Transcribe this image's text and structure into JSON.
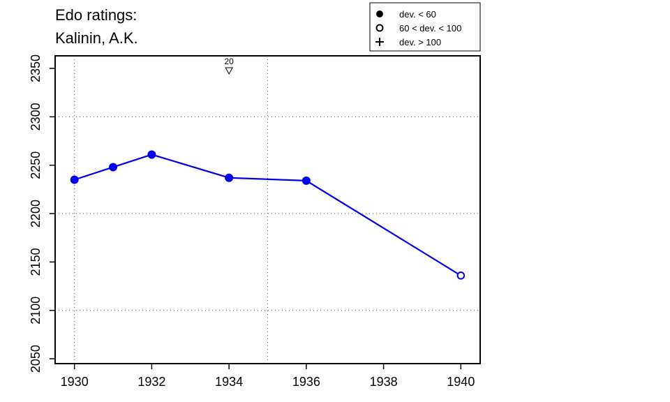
{
  "chart_data": {
    "type": "line",
    "title_lines": [
      "Edo ratings:",
      "Kalinin, A.K."
    ],
    "xlabel": "",
    "ylabel": "",
    "xlim": [
      1929.5,
      1940.5
    ],
    "ylim": [
      2045,
      2363
    ],
    "x_ticks": [
      1930,
      1932,
      1934,
      1936,
      1938,
      1940
    ],
    "y_ticks": [
      2050,
      2100,
      2150,
      2200,
      2250,
      2300,
      2350
    ],
    "grid_x": [
      1930,
      1935
    ],
    "grid_y": [
      2100,
      2200,
      2300
    ],
    "grid": true,
    "series": [
      {
        "color": "#0000ee",
        "points": [
          {
            "x": 1930,
            "y": 2235,
            "marker": "filled"
          },
          {
            "x": 1931,
            "y": 2248,
            "marker": "filled"
          },
          {
            "x": 1932,
            "y": 2261,
            "marker": "filled"
          },
          {
            "x": 1934,
            "y": 2237,
            "marker": "filled"
          },
          {
            "x": 1936,
            "y": 2234,
            "marker": "filled"
          },
          {
            "x": 1940,
            "y": 2136,
            "marker": "open"
          }
        ]
      }
    ],
    "annotations": [
      {
        "x": 1934,
        "label": "20",
        "symbol": "down-triangle"
      }
    ],
    "legend": {
      "placement": "top-right",
      "entries": [
        {
          "symbol": "filled-circle",
          "label": "dev. < 60"
        },
        {
          "symbol": "open-circle",
          "label": "60 < dev. < 100"
        },
        {
          "symbol": "plus",
          "label": "dev. > 100"
        }
      ]
    }
  }
}
